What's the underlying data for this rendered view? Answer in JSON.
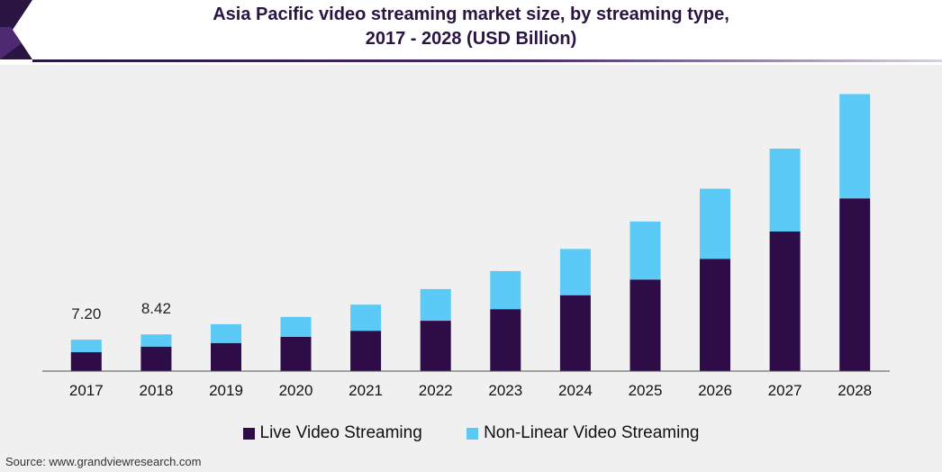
{
  "header": {
    "title_line1": "Asia Pacific video streaming market size, by streaming type,",
    "title_line2": "2017 - 2028 (USD Billion)"
  },
  "colors": {
    "live": "#2d0c47",
    "nonlinear": "#5ccaf6",
    "title": "#2a1442",
    "axis": "#555555",
    "background": "#f0f0f0"
  },
  "chart_data": {
    "type": "bar",
    "stacked": true,
    "title": "Asia Pacific video streaming market size, by streaming type, 2017 - 2028 (USD Billion)",
    "categories": [
      "2017",
      "2018",
      "2019",
      "2020",
      "2021",
      "2022",
      "2023",
      "2024",
      "2025",
      "2026",
      "2027",
      "2028"
    ],
    "series": [
      {
        "name": "Live Video Streaming",
        "values": [
          4.33,
          5.61,
          6.45,
          7.86,
          9.25,
          11.55,
          14.2,
          17.4,
          21.0,
          25.7,
          32.0,
          39.6
        ]
      },
      {
        "name": "Non-Linear Video Streaming",
        "values": [
          2.87,
          2.81,
          4.3,
          4.56,
          5.99,
          7.25,
          8.74,
          10.6,
          13.3,
          16.1,
          19.0,
          23.9
        ]
      }
    ],
    "data_labels": [
      {
        "category": "2017",
        "text": "7.20"
      },
      {
        "category": "2018",
        "text": "8.42"
      }
    ],
    "ylim": [
      0,
      64
    ],
    "grid": false,
    "legend": "bottom"
  },
  "legend": {
    "live_label": "Live Video Streaming",
    "nonlinear_label": "Non-Linear Video Streaming"
  },
  "source": "Source: www.grandviewresearch.com"
}
